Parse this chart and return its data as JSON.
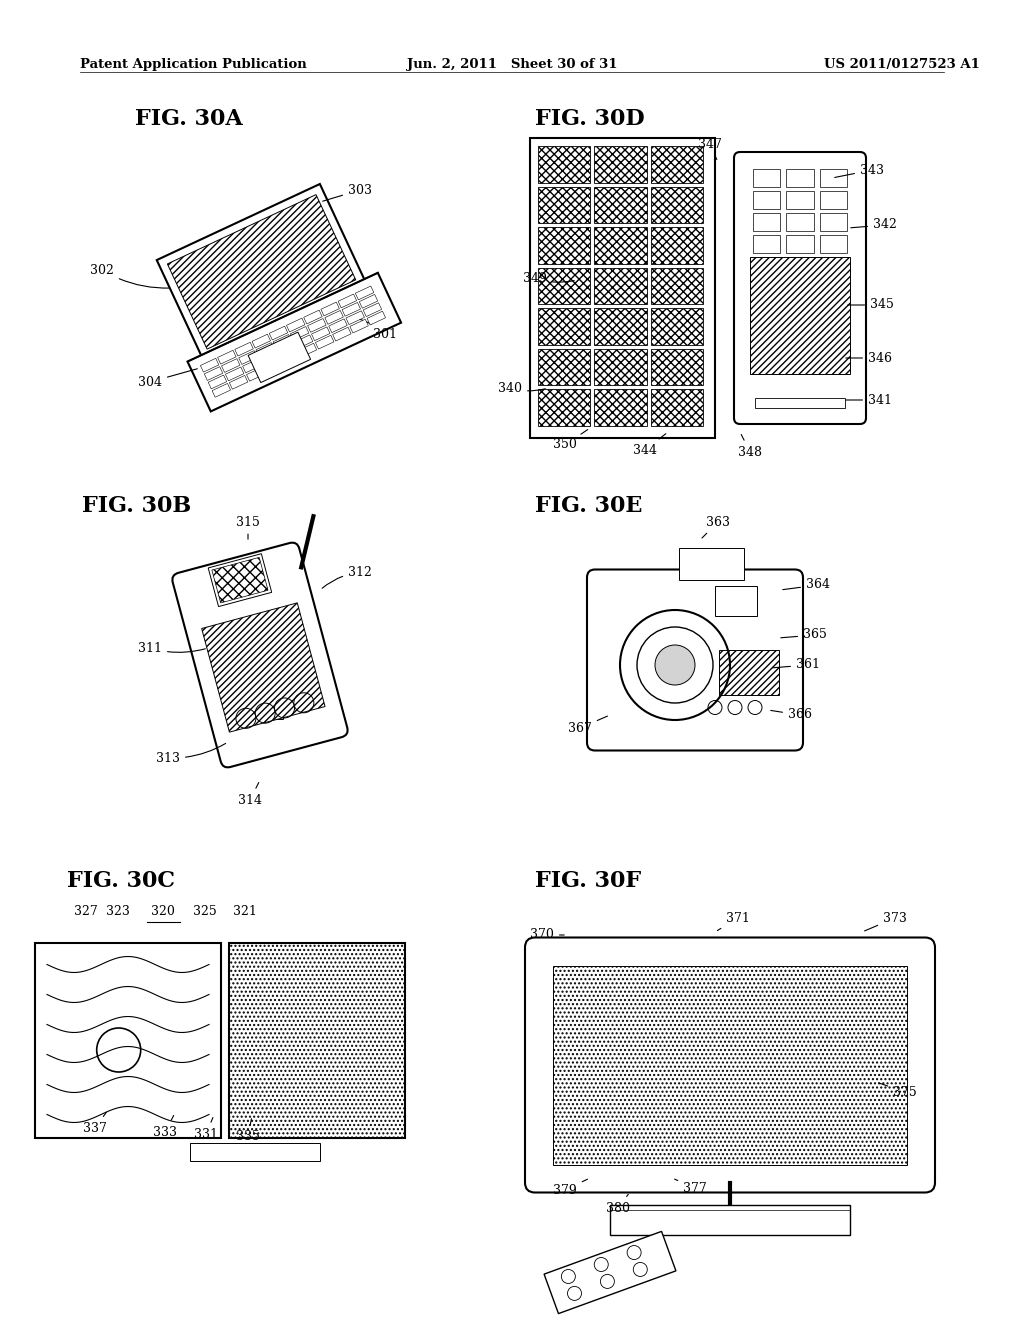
{
  "header_left": "Patent Application Publication",
  "header_mid": "Jun. 2, 2011   Sheet 30 of 31",
  "header_right": "US 2011/0127523 A1",
  "background_color": "#ffffff",
  "fig_label_fontsize": 16,
  "annotation_fontsize": 9,
  "header_fontsize": 9.5
}
